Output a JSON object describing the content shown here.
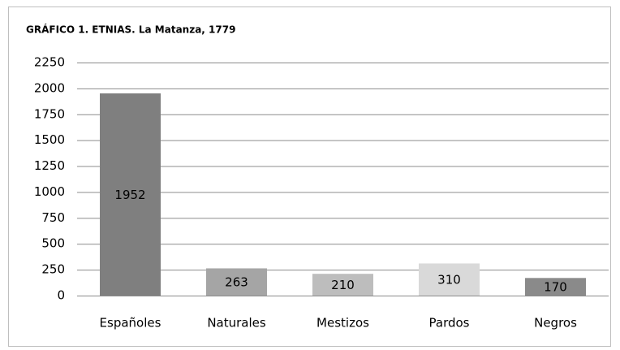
{
  "chart_data": {
    "type": "bar",
    "title": "GRÁFICO 1. ETNIAS. La Matanza, 1779",
    "categories": [
      "Españoles",
      "Naturales",
      "Mestizos",
      "Pardos",
      "Negros"
    ],
    "values": [
      1952,
      263,
      210,
      310,
      170
    ],
    "colors": [
      "#7f7f7f",
      "#a5a5a5",
      "#bdbdbd",
      "#d9d9d9",
      "#8a8a8a"
    ],
    "ylim": [
      0,
      2250
    ],
    "yticks": [
      0,
      250,
      500,
      750,
      1000,
      1250,
      1500,
      1750,
      2000,
      2250
    ],
    "grid": true
  }
}
